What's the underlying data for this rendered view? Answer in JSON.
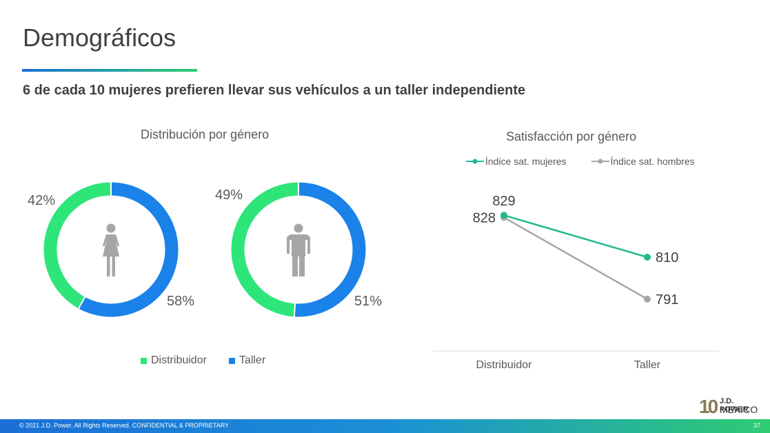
{
  "header": {
    "title": "Demográficos",
    "subtitle": "6 de cada 10 mujeres prefieren llevar sus vehículos a un taller independiente"
  },
  "colors": {
    "distribuidor": "#2ee57a",
    "taller": "#1a82e8",
    "mujeres": "#21b890",
    "hombres": "#a6a6a6",
    "icon": "#a6a6a6"
  },
  "chart_data": [
    {
      "type": "donut",
      "title": "Distribución por género",
      "legend": [
        "Distribuidor",
        "Taller"
      ],
      "donuts": [
        {
          "group": "mujeres",
          "icon": "female-icon",
          "distribuidor": 42,
          "taller": 58,
          "labels": {
            "distribuidor": "42%",
            "taller": "58%"
          }
        },
        {
          "group": "hombres",
          "icon": "male-icon",
          "distribuidor": 49,
          "taller": 51,
          "labels": {
            "distribuidor": "49%",
            "taller": "51%"
          }
        }
      ]
    },
    {
      "type": "line",
      "title": "Satisfacción por género",
      "categories": [
        "Distribuidor",
        "Taller"
      ],
      "series": [
        {
          "name": "Índice sat. mujeres",
          "values": [
            829,
            810
          ]
        },
        {
          "name": "Índice sat. hombres",
          "values": [
            828,
            791
          ]
        }
      ],
      "ylim": [
        780,
        840
      ],
      "legend_position": "top",
      "grid": false
    }
  ],
  "footer": {
    "copyright": "© 2021 J.D. Power. All Rights Reserved. CONFIDENTIAL & PROPRIETARY",
    "page": "37"
  },
  "logo": {
    "number": "10",
    "top": "J.D. POWER",
    "bottom": "MEXICO"
  }
}
